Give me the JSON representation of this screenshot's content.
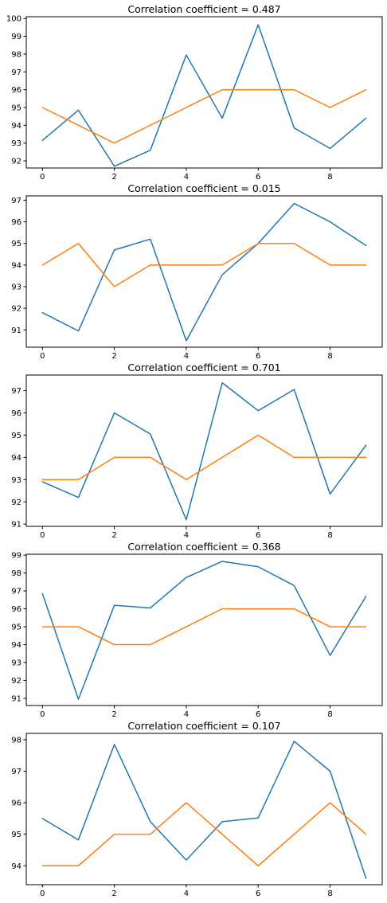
{
  "colors": {
    "blue": "#1f77b4",
    "orange": "#ff7f0e"
  },
  "chart_data": [
    {
      "type": "line",
      "title": "Correlation coefficient = 0.487",
      "x": [
        0,
        1,
        2,
        3,
        4,
        5,
        6,
        7,
        8,
        9
      ],
      "xticks": [
        0,
        2,
        4,
        6,
        8
      ],
      "xticklabels": [
        "0",
        "2",
        "4",
        "6",
        "8"
      ],
      "xlim": [
        -0.45,
        9.45
      ],
      "ylim": [
        91.6,
        100.1
      ],
      "yticks": [
        92,
        93,
        94,
        95,
        96,
        97,
        98,
        99,
        100
      ],
      "yticklabels": [
        "92",
        "93",
        "94",
        "95",
        "96",
        "97",
        "98",
        "99",
        "100"
      ],
      "grid": false,
      "series": [
        {
          "color": "#1f77b4",
          "values": [
            93.15,
            94.85,
            91.7,
            92.6,
            97.95,
            94.4,
            99.65,
            93.85,
            92.7,
            94.4
          ]
        },
        {
          "color": "#ff7f0e",
          "values": [
            95,
            94,
            93,
            94,
            95,
            96,
            96,
            96,
            95,
            96
          ]
        }
      ]
    },
    {
      "type": "line",
      "title": "Correlation coefficient = 0.015",
      "x": [
        0,
        1,
        2,
        3,
        4,
        5,
        6,
        7,
        8,
        9
      ],
      "xticks": [
        0,
        2,
        4,
        6,
        8
      ],
      "xticklabels": [
        "0",
        "2",
        "4",
        "6",
        "8"
      ],
      "xlim": [
        -0.45,
        9.45
      ],
      "ylim": [
        90.2,
        97.2
      ],
      "yticks": [
        91,
        92,
        93,
        94,
        95,
        96,
        97
      ],
      "yticklabels": [
        "91",
        "92",
        "93",
        "94",
        "95",
        "96",
        "97"
      ],
      "grid": false,
      "series": [
        {
          "color": "#1f77b4",
          "values": [
            91.8,
            90.95,
            94.7,
            95.2,
            90.5,
            93.55,
            95.0,
            96.85,
            96.0,
            94.9
          ]
        },
        {
          "color": "#ff7f0e",
          "values": [
            94,
            95,
            93,
            94,
            94,
            94,
            95,
            95,
            94,
            94
          ]
        }
      ]
    },
    {
      "type": "line",
      "title": "Correlation coefficient = 0.701",
      "x": [
        0,
        1,
        2,
        3,
        4,
        5,
        6,
        7,
        8,
        9
      ],
      "xticks": [
        0,
        2,
        4,
        6,
        8
      ],
      "xticklabels": [
        "0",
        "2",
        "4",
        "6",
        "8"
      ],
      "xlim": [
        -0.45,
        9.45
      ],
      "ylim": [
        90.9,
        97.7
      ],
      "yticks": [
        91,
        92,
        93,
        94,
        95,
        96,
        97
      ],
      "yticklabels": [
        "91",
        "92",
        "93",
        "94",
        "95",
        "96",
        "97"
      ],
      "grid": false,
      "series": [
        {
          "color": "#1f77b4",
          "values": [
            92.9,
            92.2,
            96.0,
            95.05,
            91.2,
            97.35,
            96.1,
            97.05,
            92.35,
            94.55
          ]
        },
        {
          "color": "#ff7f0e",
          "values": [
            93,
            93,
            94,
            94,
            93,
            94,
            95,
            94,
            94,
            94
          ]
        }
      ]
    },
    {
      "type": "line",
      "title": "Correlation coefficient = 0.368",
      "x": [
        0,
        1,
        2,
        3,
        4,
        5,
        6,
        7,
        8,
        9
      ],
      "xticks": [
        0,
        2,
        4,
        6,
        8
      ],
      "xticklabels": [
        "0",
        "2",
        "4",
        "6",
        "8"
      ],
      "xlim": [
        -0.45,
        9.45
      ],
      "ylim": [
        90.6,
        99.05
      ],
      "yticks": [
        91,
        92,
        93,
        94,
        95,
        96,
        97,
        98,
        99
      ],
      "yticklabels": [
        "91",
        "92",
        "93",
        "94",
        "95",
        "96",
        "97",
        "98",
        "99"
      ],
      "grid": false,
      "series": [
        {
          "color": "#1f77b4",
          "values": [
            96.85,
            90.95,
            96.2,
            96.05,
            97.75,
            98.65,
            98.35,
            97.3,
            93.4,
            96.7
          ]
        },
        {
          "color": "#ff7f0e",
          "values": [
            95,
            95,
            94,
            94,
            95,
            96,
            96,
            96,
            95,
            95
          ]
        }
      ]
    },
    {
      "type": "line",
      "title": "Correlation coefficient = 0.107",
      "x": [
        0,
        1,
        2,
        3,
        4,
        5,
        6,
        7,
        8,
        9
      ],
      "xticks": [
        0,
        2,
        4,
        6,
        8
      ],
      "xticklabels": [
        "0",
        "2",
        "4",
        "6",
        "8"
      ],
      "xlim": [
        -0.45,
        9.45
      ],
      "ylim": [
        93.4,
        98.2
      ],
      "yticks": [
        94,
        95,
        96,
        97,
        98
      ],
      "yticklabels": [
        "94",
        "95",
        "96",
        "97",
        "98"
      ],
      "grid": false,
      "series": [
        {
          "color": "#1f77b4",
          "values": [
            95.5,
            94.82,
            97.85,
            95.4,
            94.18,
            95.4,
            95.52,
            97.95,
            97.0,
            93.6
          ]
        },
        {
          "color": "#ff7f0e",
          "values": [
            94,
            94,
            95,
            95,
            96,
            95,
            94,
            95,
            96,
            95
          ]
        }
      ]
    }
  ]
}
